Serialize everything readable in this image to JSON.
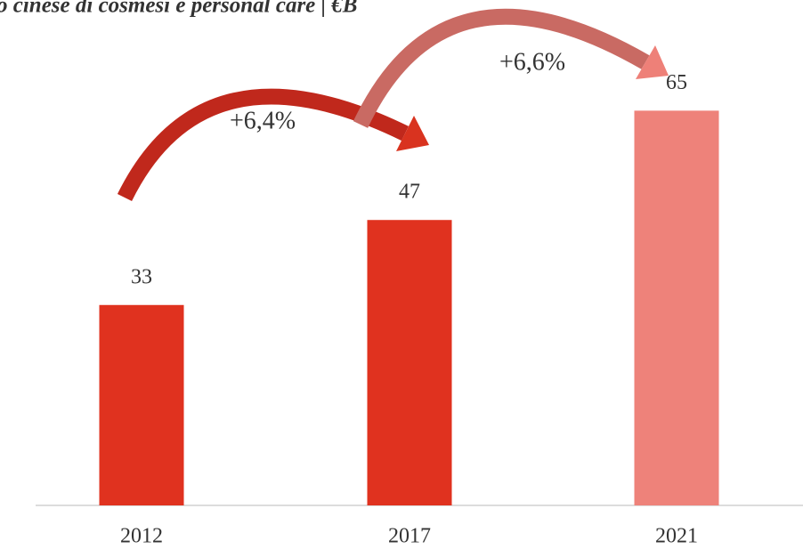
{
  "chart_data": {
    "type": "bar",
    "title": "o cinese di cosmesi e personal care | €B",
    "categories": [
      "2012",
      "2017",
      "2021"
    ],
    "values": [
      33,
      47,
      65
    ],
    "colors": [
      "#e0321f",
      "#e0321f",
      "#ee827a"
    ],
    "ylim": [
      0,
      80
    ],
    "annotations": [
      "+6,4%",
      "+6,6%"
    ]
  }
}
